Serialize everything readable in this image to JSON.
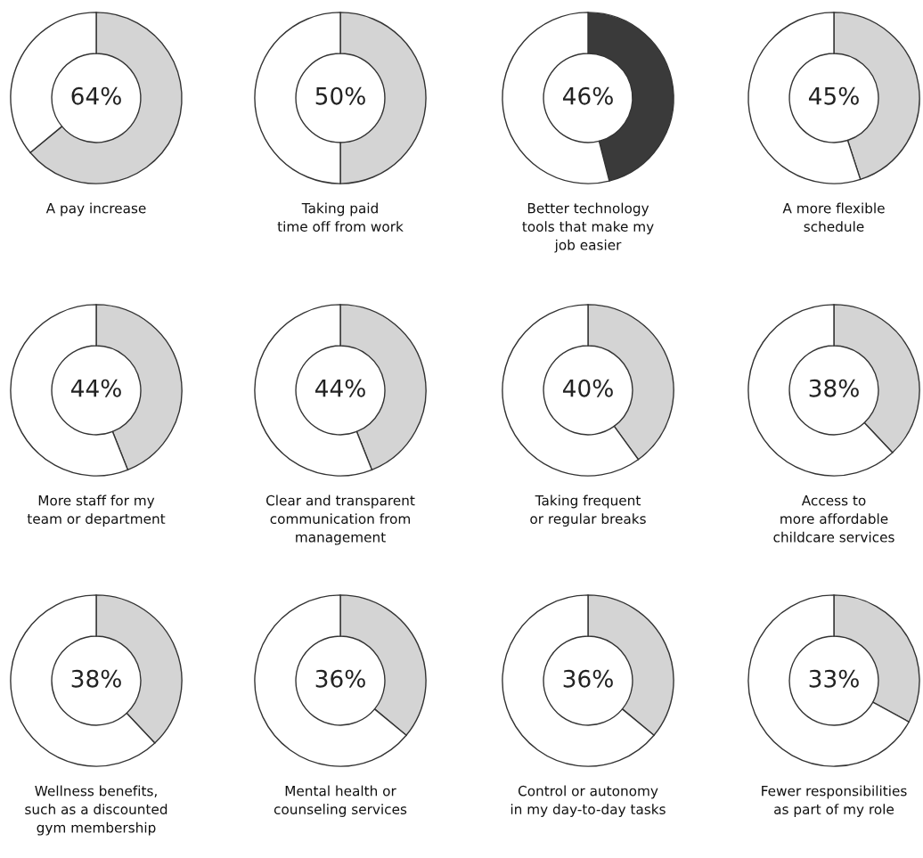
{
  "chart_data": [
    {
      "type": "donut",
      "title": "A pay increase",
      "categories": [
        null,
        null
      ],
      "values": [
        64,
        36
      ],
      "colors": [
        "#d4d4d4",
        "#ffffff"
      ],
      "value_labels": [
        "64%",
        null
      ]
    },
    {
      "type": "donut",
      "title": "Taking paid\ntime off from work",
      "categories": [
        null,
        null
      ],
      "values": [
        50,
        50
      ],
      "colors": [
        "#d4d4d4",
        "#ffffff"
      ],
      "value_labels": [
        "50%",
        null
      ]
    },
    {
      "type": "donut",
      "title": "Better technology\ntools that make my\njob easier",
      "categories": [
        null,
        null
      ],
      "values": [
        46,
        54
      ],
      "colors": [
        "#3a3a3a",
        "#ffffff"
      ],
      "value_labels": [
        "46%",
        null
      ]
    },
    {
      "type": "donut",
      "title": "A more flexible\nschedule",
      "categories": [
        null,
        null
      ],
      "values": [
        45,
        55
      ],
      "colors": [
        "#d4d4d4",
        "#ffffff"
      ],
      "value_labels": [
        "45%",
        null
      ]
    },
    {
      "type": "donut",
      "title": "More staff for my\nteam or department",
      "categories": [
        null,
        null
      ],
      "values": [
        44,
        56
      ],
      "colors": [
        "#d4d4d4",
        "#ffffff"
      ],
      "value_labels": [
        "44%",
        null
      ]
    },
    {
      "type": "donut",
      "title": "Clear and transparent\ncommunication from\nmanagement",
      "categories": [
        null,
        null
      ],
      "values": [
        44,
        56
      ],
      "colors": [
        "#d4d4d4",
        "#ffffff"
      ],
      "value_labels": [
        "44%",
        null
      ]
    },
    {
      "type": "donut",
      "title": "Taking frequent\nor regular breaks",
      "categories": [
        null,
        null
      ],
      "values": [
        40,
        60
      ],
      "colors": [
        "#d4d4d4",
        "#ffffff"
      ],
      "value_labels": [
        "40%",
        null
      ]
    },
    {
      "type": "donut",
      "title": "Access to\nmore affordable\nchildcare services",
      "categories": [
        null,
        null
      ],
      "values": [
        38,
        62
      ],
      "colors": [
        "#d4d4d4",
        "#ffffff"
      ],
      "value_labels": [
        "38%",
        null
      ]
    },
    {
      "type": "donut",
      "title": "Wellness benefits,\nsuch as a discounted\ngym membership",
      "categories": [
        null,
        null
      ],
      "values": [
        38,
        62
      ],
      "colors": [
        "#d4d4d4",
        "#ffffff"
      ],
      "value_labels": [
        "38%",
        null
      ]
    },
    {
      "type": "donut",
      "title": "Mental health or\ncounseling services",
      "categories": [
        null,
        null
      ],
      "values": [
        36,
        64
      ],
      "colors": [
        "#d4d4d4",
        "#ffffff"
      ],
      "value_labels": [
        "36%",
        null
      ]
    },
    {
      "type": "donut",
      "title": "Control or autonomy\nin my day-to-day tasks",
      "categories": [
        null,
        null
      ],
      "values": [
        36,
        64
      ],
      "colors": [
        "#d4d4d4",
        "#ffffff"
      ],
      "value_labels": [
        "36%",
        null
      ]
    },
    {
      "type": "donut",
      "title": "Fewer responsibilities\nas part of my role",
      "categories": [
        null,
        null
      ],
      "values": [
        33,
        67
      ],
      "colors": [
        "#d4d4d4",
        "#ffffff"
      ],
      "value_labels": [
        "33%",
        null
      ]
    }
  ]
}
